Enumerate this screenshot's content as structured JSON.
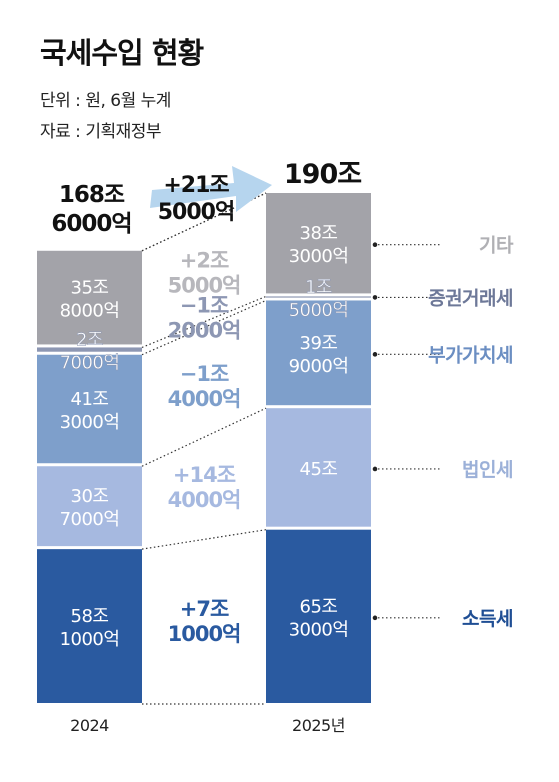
{
  "header": {
    "title": "국세수입 현황",
    "unit": "단위 : 원, 6월 누계",
    "source": "자료 : 기획재정부"
  },
  "chart_data": {
    "type": "bar",
    "stacked": true,
    "categories": [
      "2024",
      "2025년"
    ],
    "totals": {
      "2024": "168조 6000억",
      "2025": "190조"
    },
    "total_change": "+21조 5000억",
    "series": [
      {
        "name": "소득세",
        "values": [
          58.1,
          65.3
        ],
        "labels": [
          "58조 1000억",
          "65조 3000억"
        ],
        "change": "+7조 1000억",
        "color": "#2a5aa0",
        "text_color": "#ffffff",
        "name_color": "#1f4e94",
        "change_color": "#2a5aa0"
      },
      {
        "name": "법인세",
        "values": [
          30.7,
          45.0
        ],
        "labels": [
          "30조 7000억",
          "45조"
        ],
        "change": "+14조 4000억",
        "color": "#a6b9e0",
        "text_color": "#ffffff",
        "name_color": "#9bb0d8",
        "change_color": "#a6b9e0"
      },
      {
        "name": "부가가치세",
        "values": [
          41.3,
          39.9
        ],
        "labels": [
          "41조 3000억",
          "39조 9000억"
        ],
        "change": "−1조 4000억",
        "color": "#7e9fcb",
        "text_color": "#ffffff",
        "name_color": "#6b8ec2",
        "change_color": "#7e9fcb"
      },
      {
        "name": "증권거래세",
        "values": [
          2.7,
          1.5
        ],
        "labels": [
          "2조 7000억",
          "1조 5000억"
        ],
        "change": "−1조 2000억",
        "color": "#8d97b3",
        "text_color": "#ffffff",
        "name_color": "#6d7898",
        "change_color": "#8d97b3"
      },
      {
        "name": "기타",
        "values": [
          35.8,
          38.3
        ],
        "labels": [
          "35조 8000억",
          "38조 3000억"
        ],
        "change": "+2조 5000억",
        "color": "#a3a3a9",
        "text_color": "#ffffff",
        "name_color": "#b0b0b4",
        "change_color": "#b7b7bc"
      }
    ]
  }
}
